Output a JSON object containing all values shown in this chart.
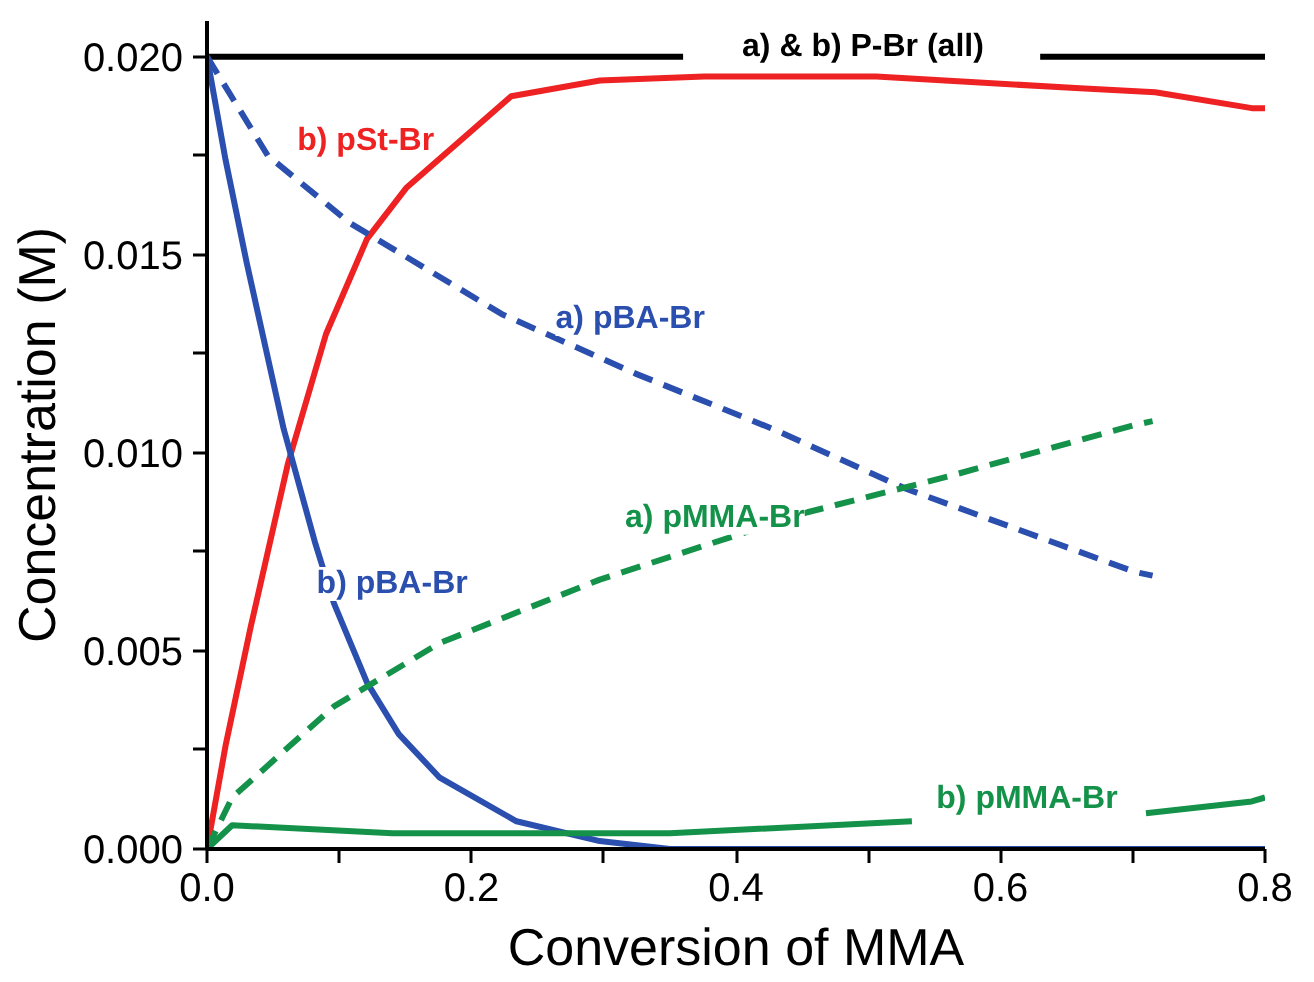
{
  "chart_data": {
    "type": "line",
    "xlabel": "Conversion of MMA",
    "ylabel": "Concentration (M)",
    "xlim": [
      0,
      0.8
    ],
    "ylim": [
      0,
      0.0209
    ],
    "xticks": [
      {
        "value": 0,
        "label": "0.0"
      },
      {
        "value": 0.1,
        "label": null
      },
      {
        "value": 0.2,
        "label": "0.2"
      },
      {
        "value": 0.3,
        "label": null
      },
      {
        "value": 0.4,
        "label": "0.4"
      },
      {
        "value": 0.5,
        "label": null
      },
      {
        "value": 0.6,
        "label": "0.6"
      },
      {
        "value": 0.7,
        "label": null
      },
      {
        "value": 0.8,
        "label": "0.8"
      }
    ],
    "yticks": [
      {
        "value": 0,
        "label": "0.000"
      },
      {
        "value": 0.0025,
        "label": null
      },
      {
        "value": 0.005,
        "label": "0.005"
      },
      {
        "value": 0.0075,
        "label": null
      },
      {
        "value": 0.01,
        "label": "0.010"
      },
      {
        "value": 0.0125,
        "label": null
      },
      {
        "value": 0.015,
        "label": "0.015"
      },
      {
        "value": 0.0175,
        "label": null
      },
      {
        "value": 0.02,
        "label": "0.020"
      }
    ],
    "grid": false,
    "marker": "none",
    "series": [
      {
        "color": "#000000",
        "line_style": "solid",
        "x": [
          0,
          0.36,
          0.5,
          0.63,
          0.8
        ],
        "values": [
          0.02,
          0.02,
          null,
          0.02,
          0.02
        ]
      },
      {
        "color": "#ee2222",
        "line_style": "solid",
        "x": [
          0,
          0.014,
          0.033,
          0.061,
          0.09,
          0.121,
          0.151,
          0.23,
          0.297,
          0.376,
          0.506,
          0.66,
          0.717,
          0.79,
          0.8
        ],
        "values": [
          0,
          0.0026,
          0.0056,
          0.0097,
          0.013,
          0.0154,
          0.0167,
          0.019,
          0.0194,
          0.0195,
          0.0195,
          0.0192,
          0.0191,
          0.0187,
          0.0187
        ]
      },
      {
        "color": "#2b4fae",
        "line_style": "dashed",
        "x": [
          0,
          0.046,
          0.108,
          0.223,
          0.324,
          0.428,
          0.528,
          0.701,
          0.715
        ],
        "values": [
          0.02,
          0.0175,
          0.0158,
          0.0135,
          0.012,
          0.0106,
          0.0091,
          0.007,
          0.0069
        ]
      },
      {
        "color": "#2b4fae",
        "line_style": "solid",
        "x": [
          0,
          0.014,
          0.03,
          0.058,
          0.082,
          0.096,
          0.121,
          0.145,
          0.176,
          0.234,
          0.297,
          0.35,
          0.8
        ],
        "values": [
          0.02,
          0.0174,
          0.0148,
          0.0106,
          0.0077,
          0.0062,
          0.0042,
          0.0029,
          0.0018,
          0.0007,
          0.0002,
          0,
          0
        ]
      },
      {
        "color": "#14924a",
        "line_style": "dashed",
        "x": [
          0,
          0.019,
          0.096,
          0.176,
          0.297,
          0.454,
          0.56,
          0.701,
          0.715
        ],
        "values": [
          0,
          0.0013,
          0.0036,
          0.0052,
          0.0068,
          0.0085,
          0.0094,
          0.0107,
          0.0108
        ]
      },
      {
        "color": "#14924a",
        "line_style": "solid",
        "x": [
          0,
          0.019,
          0.14,
          0.35,
          0.533,
          0.62,
          0.71,
          0.79,
          0.8
        ],
        "values": [
          0,
          0.0006,
          0.0004,
          0.0004,
          0.0007,
          null,
          0.0009,
          0.0012,
          0.0013
        ]
      }
    ],
    "annotations": [
      "a) & b) P-Br (all)",
      "b) pSt-Br",
      "a) pBA-Br",
      "b) pBA-Br",
      "a) pMMA-Br",
      "b) pMMA-Br"
    ]
  }
}
